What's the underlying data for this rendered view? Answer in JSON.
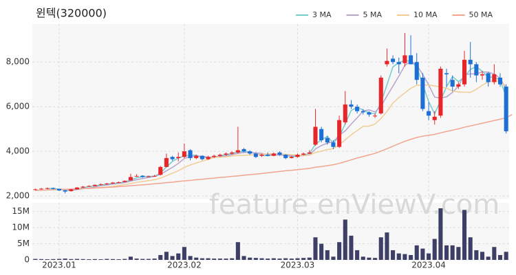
{
  "chart_data": [
    {
      "type": "candlestick",
      "title": "윈텍(320000)",
      "watermark": "feature.enViewV.com",
      "up_color": "#e8262a",
      "down_color": "#1d6fd6",
      "grid": true,
      "legend": "top-right",
      "ylim": [
        1850,
        9700
      ],
      "yticks": [
        {
          "value": 2000,
          "label": "2,000"
        },
        {
          "value": 4000,
          "label": "4,000"
        },
        {
          "value": 6000,
          "label": "6,000"
        },
        {
          "value": 8000,
          "label": "8,000"
        }
      ],
      "open": [
        2270,
        2300,
        2330,
        2360,
        2320,
        2250,
        2220,
        2300,
        2380,
        2420,
        2450,
        2500,
        2530,
        2560,
        2600,
        2630,
        2700,
        2880,
        2910,
        2850,
        2880,
        2950,
        3300,
        3750,
        3700,
        3750,
        4050,
        3700,
        3800,
        3650,
        3750,
        3800,
        3850,
        3900,
        3950,
        4100,
        4000,
        3900,
        3800,
        3850,
        3800,
        3950,
        3850,
        3700,
        3750,
        3850,
        3900,
        4300,
        5000,
        4600,
        4400,
        4200,
        5300,
        6100,
        6000,
        5800,
        5750,
        5600,
        5700,
        7900,
        8150,
        8000,
        7950,
        8300,
        8000,
        7300,
        5800,
        5400,
        5600,
        7500,
        7200,
        6900,
        7000,
        8100,
        7900,
        7400,
        7500,
        7100,
        7300,
        6900
      ],
      "high": [
        2330,
        2360,
        2380,
        2380,
        2330,
        2270,
        2320,
        2400,
        2450,
        2480,
        2520,
        2560,
        2590,
        2630,
        2650,
        2700,
        3000,
        2980,
        2930,
        2920,
        2950,
        3350,
        3900,
        3800,
        3950,
        4350,
        4100,
        3850,
        3820,
        3800,
        3850,
        3900,
        3950,
        4000,
        5100,
        4150,
        4050,
        3950,
        3900,
        3950,
        3950,
        4000,
        3870,
        3800,
        3900,
        3950,
        4050,
        5900,
        5100,
        4700,
        4500,
        5600,
        6700,
        6300,
        6100,
        5900,
        5800,
        5700,
        7400,
        8600,
        8300,
        8200,
        9300,
        9200,
        8400,
        7500,
        6200,
        5800,
        7800,
        7700,
        7400,
        7100,
        8500,
        8900,
        8000,
        7600,
        7550,
        7900,
        7500,
        7000
      ],
      "low": [
        2250,
        2280,
        2300,
        2290,
        2220,
        2120,
        2200,
        2290,
        2360,
        2400,
        2430,
        2480,
        2500,
        2540,
        2580,
        2610,
        2690,
        2850,
        2820,
        2840,
        2860,
        2920,
        3280,
        3580,
        3550,
        3700,
        3600,
        3650,
        3600,
        3620,
        3700,
        3750,
        3800,
        3850,
        3900,
        3950,
        3850,
        3700,
        3750,
        3780,
        3780,
        3800,
        3650,
        3680,
        3720,
        3820,
        3880,
        4250,
        4400,
        4300,
        4100,
        4150,
        5200,
        5900,
        5700,
        5650,
        5550,
        5500,
        5650,
        7800,
        7900,
        7500,
        7800,
        7900,
        7000,
        5800,
        5400,
        5200,
        5500,
        6900,
        6700,
        6800,
        6900,
        7300,
        7100,
        7200,
        6900,
        7000,
        6900,
        4800
      ],
      "close": [
        2300,
        2330,
        2350,
        2320,
        2250,
        2200,
        2300,
        2380,
        2420,
        2450,
        2500,
        2530,
        2560,
        2600,
        2620,
        2680,
        2850,
        2900,
        2850,
        2880,
        2900,
        3300,
        3700,
        3650,
        3750,
        4000,
        3700,
        3800,
        3650,
        3750,
        3800,
        3850,
        3900,
        3950,
        4050,
        4000,
        3900,
        3750,
        3850,
        3800,
        3900,
        3850,
        3700,
        3750,
        3850,
        3900,
        3950,
        5100,
        4500,
        4400,
        4200,
        5400,
        6100,
        6000,
        5800,
        5750,
        5650,
        5600,
        7300,
        8050,
        8000,
        7900,
        8300,
        7900,
        7200,
        5900,
        5600,
        5550,
        7700,
        7450,
        6900,
        7000,
        8100,
        7900,
        7400,
        7450,
        7100,
        7450,
        7000,
        4900
      ],
      "series": [
        {
          "name": "3 MA",
          "color": "#72cccc",
          "values": [
            null,
            null,
            2330,
            2330,
            2310,
            2260,
            2250,
            2290,
            2370,
            2420,
            2460,
            2490,
            2530,
            2560,
            2590,
            2630,
            2720,
            2810,
            2870,
            2880,
            2880,
            3030,
            3300,
            3550,
            3700,
            3800,
            3820,
            3830,
            3720,
            3730,
            3730,
            3800,
            3850,
            3900,
            3970,
            4000,
            3980,
            3880,
            3830,
            3800,
            3850,
            3850,
            3820,
            3770,
            3770,
            3830,
            3900,
            4320,
            4520,
            4670,
            4370,
            4670,
            5230,
            5830,
            5970,
            5850,
            5730,
            5670,
            6180,
            6980,
            7780,
            7980,
            8070,
            8030,
            7800,
            7000,
            6230,
            5680,
            6280,
            6900,
            7350,
            7120,
            7330,
            7670,
            7800,
            7580,
            7320,
            7330,
            7180,
            6450
          ]
        },
        {
          "name": "5 MA",
          "color": "#b7a3cc",
          "values": [
            null,
            null,
            null,
            null,
            2310,
            2290,
            2280,
            2290,
            2330,
            2350,
            2410,
            2460,
            2490,
            2530,
            2560,
            2600,
            2670,
            2730,
            2780,
            2830,
            2880,
            2970,
            3130,
            3280,
            3460,
            3680,
            3760,
            3780,
            3780,
            3740,
            3740,
            3770,
            3790,
            3850,
            3910,
            3950,
            3960,
            3930,
            3910,
            3860,
            3840,
            3830,
            3820,
            3800,
            3810,
            3810,
            3830,
            4110,
            4260,
            4370,
            4430,
            4720,
            4920,
            5220,
            5500,
            5810,
            5860,
            5760,
            6020,
            6480,
            6920,
            7370,
            7850,
            8030,
            7860,
            7440,
            6980,
            6430,
            6390,
            6440,
            6640,
            6920,
            7430,
            7470,
            7470,
            7560,
            7550,
            7460,
            7280,
            6780
          ]
        },
        {
          "name": "10 MA",
          "color": "#f2cc94",
          "values": [
            null,
            null,
            null,
            null,
            null,
            null,
            null,
            null,
            null,
            2340,
            2360,
            2380,
            2400,
            2430,
            2470,
            2510,
            2560,
            2610,
            2650,
            2690,
            2730,
            2800,
            2910,
            3020,
            3130,
            3280,
            3390,
            3480,
            3560,
            3640,
            3730,
            3740,
            3760,
            3790,
            3820,
            3820,
            3840,
            3850,
            3880,
            3880,
            3890,
            3890,
            3870,
            3850,
            3830,
            3820,
            3830,
            3950,
            4010,
            4080,
            4120,
            4290,
            4520,
            4740,
            4930,
            5120,
            5130,
            5220,
            5470,
            5780,
            6160,
            6410,
            6620,
            6820,
            6960,
            6970,
            6970,
            6930,
            6880,
            6830,
            6700,
            6660,
            6650,
            6640,
            6780,
            6960,
            7120,
            7170,
            7120,
            6930
          ]
        },
        {
          "name": "50 MA",
          "color": "#f2a48e",
          "values": [
            2250,
            2260,
            2270,
            2280,
            2290,
            2300,
            2310,
            2320,
            2330,
            2340,
            2360,
            2370,
            2390,
            2400,
            2420,
            2440,
            2460,
            2480,
            2500,
            2520,
            2550,
            2570,
            2600,
            2620,
            2650,
            2680,
            2700,
            2730,
            2750,
            2780,
            2800,
            2830,
            2850,
            2880,
            2900,
            2930,
            2960,
            2980,
            3010,
            3040,
            3070,
            3100,
            3130,
            3150,
            3180,
            3210,
            3240,
            3290,
            3320,
            3360,
            3400,
            3460,
            3540,
            3620,
            3700,
            3770,
            3840,
            3910,
            4010,
            4120,
            4230,
            4340,
            4450,
            4540,
            4620,
            4680,
            4720,
            4760,
            4830,
            4890,
            4950,
            5010,
            5080,
            5140,
            5200,
            5260,
            5320,
            5380,
            5440,
            5500,
            5650
          ]
        }
      ]
    },
    {
      "type": "bar",
      "color": "#3d3f66",
      "grid": true,
      "categories": [
        null,
        null,
        null,
        null,
        "2023.01",
        null,
        null,
        null,
        null,
        null,
        null,
        null,
        null,
        null,
        null,
        null,
        null,
        null,
        null,
        null,
        null,
        null,
        null,
        null,
        null,
        "2023.02",
        null,
        null,
        null,
        null,
        null,
        null,
        null,
        null,
        null,
        null,
        null,
        null,
        null,
        null,
        null,
        null,
        null,
        null,
        "2023.03",
        null,
        null,
        null,
        null,
        null,
        null,
        null,
        null,
        null,
        null,
        null,
        null,
        null,
        null,
        null,
        null,
        null,
        null,
        null,
        null,
        null,
        "2023.04",
        null,
        null,
        null,
        null,
        null,
        null,
        null,
        null,
        null,
        null,
        null,
        null,
        null
      ],
      "values": [
        300000,
        250000,
        200000,
        250000,
        300000,
        400000,
        250000,
        300000,
        250000,
        200000,
        250000,
        200000,
        300000,
        250000,
        200000,
        300000,
        1000000,
        400000,
        300000,
        300000,
        400000,
        1500000,
        2500000,
        1200000,
        2000000,
        4000000,
        1200000,
        700000,
        500000,
        500000,
        400000,
        400000,
        400000,
        500000,
        5500000,
        1200000,
        700000,
        600000,
        500000,
        400000,
        500000,
        400000,
        500000,
        400000,
        500000,
        600000,
        700000,
        7000000,
        5000000,
        3000000,
        1000000,
        5500000,
        12500000,
        7500000,
        3000000,
        1000000,
        700000,
        600000,
        7000000,
        8500000,
        3000000,
        2000000,
        1800000,
        1500000,
        4500000,
        3500000,
        2000000,
        6500000,
        16000000,
        4500000,
        4500000,
        4000000,
        15500000,
        7000000,
        3000000,
        2500000,
        1000000,
        4000000,
        1500000,
        2500000
      ],
      "ylim": [
        0,
        17700000
      ],
      "yticks": [
        0,
        {
          "value": 5000000,
          "label": "5M"
        },
        {
          "value": 10000000,
          "label": "10M"
        },
        {
          "value": 15000000,
          "label": "15M"
        }
      ]
    }
  ]
}
